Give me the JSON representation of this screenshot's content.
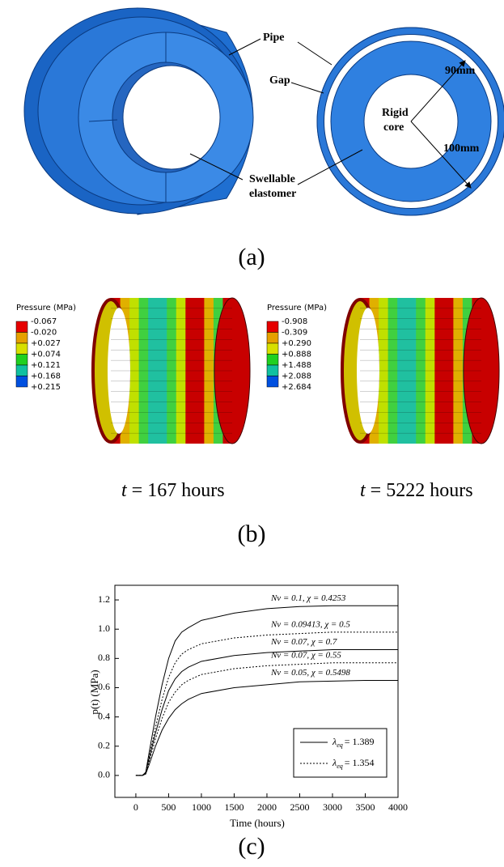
{
  "panel_a": {
    "pipe": "Pipe",
    "gap": "Gap",
    "elastomer_1": "Swellable",
    "elastomer_2": "elastomer",
    "core_1": "Rigid",
    "core_2": "core",
    "r_inner": "90mm",
    "r_outer": "100mm",
    "caption": "(a)"
  },
  "panel_b": {
    "left": {
      "legend_title": "Pressure (MPa)",
      "levels": [
        "-0.067",
        "-0.020",
        "+0.027",
        "+0.074",
        "+0.121",
        "+0.168",
        "+0.215"
      ],
      "t_symbol": "t",
      "t_text": "= 167 hours"
    },
    "right": {
      "legend_title": "Pressure (MPa)",
      "levels": [
        "-0.908",
        "-0.309",
        "+0.290",
        "+0.888",
        "+1.488",
        "+2.088",
        "+2.684"
      ],
      "t_symbol": "t",
      "t_text": "= 5222 hours"
    },
    "caption": "(b)"
  },
  "chart_data": {
    "type": "line",
    "x_label": "Time (hours)",
    "y_label": "p(t) (MPa)",
    "caption": "(c)",
    "x": [
      0,
      100,
      150,
      200,
      300,
      400,
      500,
      600,
      700,
      800,
      1000,
      1500,
      2000,
      2500,
      3000,
      3500,
      4000
    ],
    "series": [
      {
        "name": "Nv = 0.1, χ = 0.4253",
        "color": "#000000",
        "dash": "solid",
        "values": [
          0,
          0,
          0.02,
          0.15,
          0.4,
          0.62,
          0.8,
          0.92,
          0.98,
          1.01,
          1.06,
          1.11,
          1.14,
          1.155,
          1.16,
          1.16,
          1.16
        ]
      },
      {
        "name": "Nv = 0.09413, χ = 0.5",
        "color": "#000000",
        "dash": "dotted",
        "values": [
          0,
          0,
          0.02,
          0.12,
          0.33,
          0.52,
          0.67,
          0.77,
          0.83,
          0.86,
          0.9,
          0.94,
          0.96,
          0.97,
          0.98,
          0.98,
          0.98
        ]
      },
      {
        "name": "Nv = 0.07, χ = 0.7",
        "color": "#000000",
        "dash": "solid",
        "values": [
          0,
          0,
          0.02,
          0.11,
          0.29,
          0.45,
          0.58,
          0.66,
          0.71,
          0.74,
          0.78,
          0.82,
          0.84,
          0.85,
          0.86,
          0.86,
          0.86
        ]
      },
      {
        "name": "Nv = 0.07, χ = 0.55",
        "color": "#000000",
        "dash": "dotted",
        "values": [
          0,
          0,
          0.01,
          0.09,
          0.25,
          0.39,
          0.5,
          0.57,
          0.62,
          0.65,
          0.69,
          0.73,
          0.75,
          0.76,
          0.77,
          0.77,
          0.77
        ]
      },
      {
        "name": "Nv = 0.05, χ = 0.5498",
        "color": "#000000",
        "dash": "solid",
        "values": [
          0,
          0,
          0.01,
          0.07,
          0.2,
          0.31,
          0.39,
          0.45,
          0.49,
          0.52,
          0.56,
          0.6,
          0.62,
          0.64,
          0.645,
          0.65,
          0.65
        ]
      }
    ],
    "legend": [
      {
        "symbol": "λ",
        "sub": "eq",
        "text": "= 1.389",
        "dash": "solid"
      },
      {
        "symbol": "λ",
        "sub": "eq",
        "text": "= 1.354",
        "dash": "dotted"
      }
    ],
    "xlim": [
      -320,
      4000
    ],
    "ylim": [
      -0.15,
      1.3
    ],
    "xticks": [
      0,
      500,
      1000,
      1500,
      2000,
      2500,
      3000,
      3500,
      4000
    ],
    "yticks": [
      {
        "value": 0,
        "label": "0.0"
      },
      0.2,
      0.4,
      0.6,
      0.8,
      {
        "value": 1,
        "label": "1.0"
      },
      1.2
    ]
  }
}
